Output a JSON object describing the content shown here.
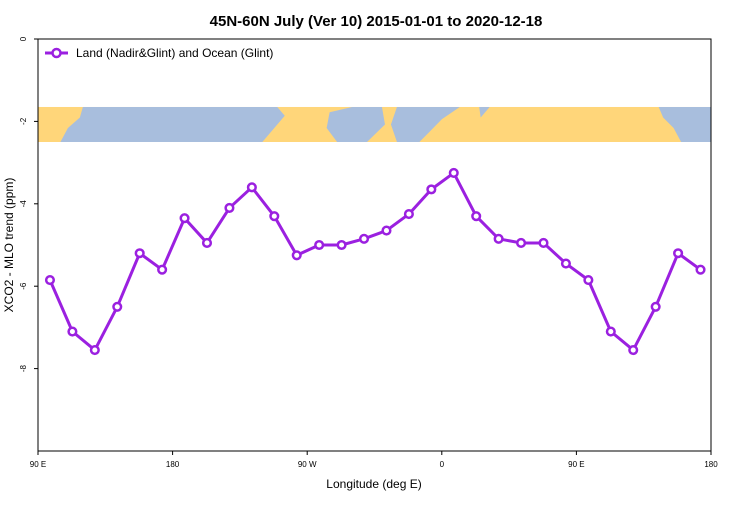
{
  "chart_data": {
    "type": "line",
    "title": "45N-60N July (Ver 10)   2015-01-01 to 2020-12-18",
    "xlabel": "Longitude (deg E)",
    "ylabel": "XCO2 - MLO trend (ppm)",
    "x_ticks": [
      {
        "value": 90,
        "label": "90 E"
      },
      {
        "value": 180,
        "label": "180"
      },
      {
        "value": 270,
        "label": "90 W"
      },
      {
        "value": 360,
        "label": "0"
      },
      {
        "value": 450,
        "label": "90 E"
      },
      {
        "value": 540,
        "label": "180"
      }
    ],
    "y_ticks": [
      0,
      -2,
      -4,
      -6,
      -8
    ],
    "xlim": [
      90,
      540
    ],
    "ylim": [
      -10,
      0
    ],
    "grid": false,
    "legend_position": "top-left",
    "series": [
      {
        "name": "Land (Nadir&Glint) and Ocean (Glint)",
        "color": "#9b20e0",
        "x": [
          98,
          113,
          128,
          143,
          158,
          173,
          188,
          203,
          218,
          233,
          248,
          263,
          278,
          293,
          308,
          323,
          338,
          353,
          368,
          383,
          398,
          413,
          428,
          443,
          458,
          473,
          488,
          503,
          518,
          533
        ],
        "y": [
          -5.85,
          -7.1,
          -7.55,
          -6.5,
          -5.2,
          -5.6,
          -4.35,
          -4.95,
          -4.1,
          -3.6,
          -4.3,
          -5.25,
          -5.0,
          -5.0,
          -4.85,
          -4.65,
          -4.25,
          -3.65,
          -3.25,
          -4.3,
          -4.85,
          -4.95,
          -4.95,
          -5.45,
          -5.85,
          -7.1,
          -7.55,
          -6.5,
          -5.2,
          -5.6
        ]
      }
    ],
    "map_strip": {
      "y_range": [
        -1.65,
        -2.5
      ],
      "land_color": "#ffd67a",
      "ocean_color": "#a8bedd"
    }
  }
}
